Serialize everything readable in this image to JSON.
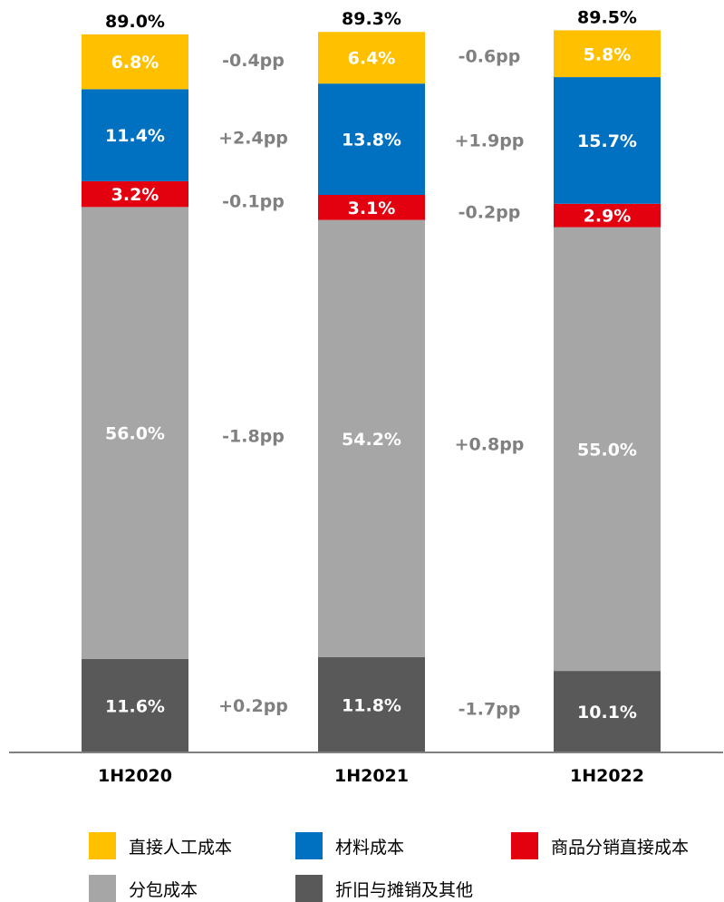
{
  "chart_data": {
    "type": "bar",
    "stacked": true,
    "categories": [
      "1H2020",
      "1H2021",
      "1H2022"
    ],
    "totals": [
      "89.0%",
      "89.3%",
      "89.5%"
    ],
    "series": [
      {
        "name": "折旧与摊销及其他",
        "color": "#595959",
        "values": [
          11.6,
          11.8,
          10.1
        ],
        "labels": [
          "11.6%",
          "11.8%",
          "10.1%"
        ],
        "changes": [
          "+0.2pp",
          "-1.7pp"
        ]
      },
      {
        "name": "分包成本",
        "color": "#A6A6A6",
        "values": [
          56.0,
          54.2,
          55.0
        ],
        "labels": [
          "56.0%",
          "54.2%",
          "55.0%"
        ],
        "changes": [
          "-1.8pp",
          "+0.8pp"
        ]
      },
      {
        "name": "商品分销直接成本",
        "color": "#E3000F",
        "values": [
          3.2,
          3.1,
          2.9
        ],
        "labels": [
          "3.2%",
          "3.1%",
          "2.9%"
        ],
        "changes": [
          "-0.1pp",
          "-0.2pp"
        ]
      },
      {
        "name": "材料成本",
        "color": "#0070C0",
        "values": [
          11.4,
          13.8,
          15.7
        ],
        "labels": [
          "11.4%",
          "13.8%",
          "15.7%"
        ],
        "changes": [
          "+2.4pp",
          "+1.9pp"
        ]
      },
      {
        "name": "直接人工成本",
        "color": "#FFC000",
        "values": [
          6.8,
          6.4,
          5.8
        ],
        "labels": [
          "6.8%",
          "6.4%",
          "5.8%"
        ],
        "changes": [
          "-0.4pp",
          "-0.6pp"
        ]
      }
    ],
    "legend_order": [
      "直接人工成本",
      "材料成本",
      "商品分销直接成本",
      "分包成本",
      "折旧与摊销及其他"
    ],
    "legend_position": "bottom",
    "change_label_color": "#808080",
    "grid": false
  }
}
